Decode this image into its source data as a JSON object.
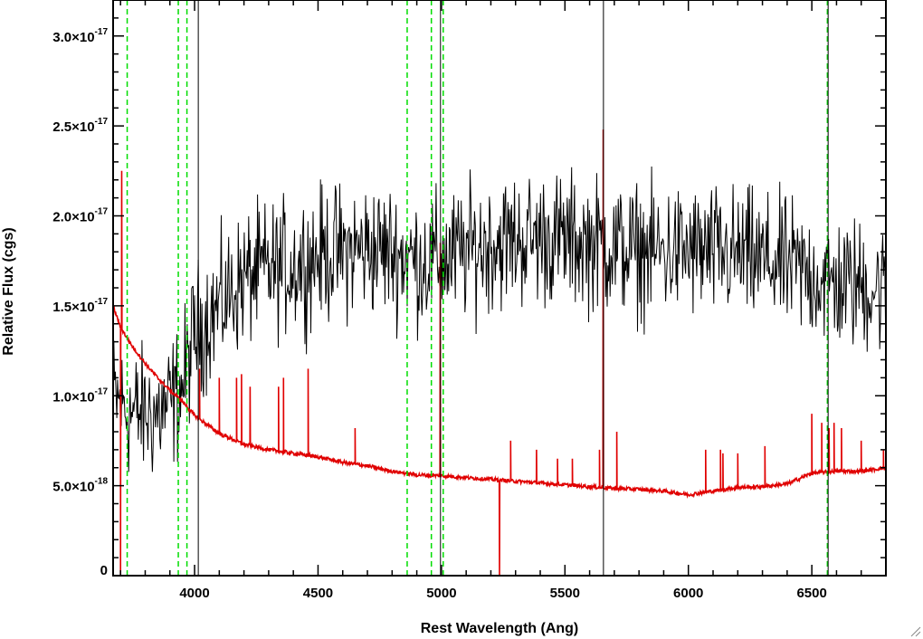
{
  "chart_data": {
    "type": "line",
    "title": "",
    "xlabel": "Rest Wavelength (Ang)",
    "ylabel": "Relative Flux (cgs)",
    "xlim": [
      3670,
      6800
    ],
    "ylim": [
      0,
      3.2e-17
    ],
    "x_ticks": [
      4000,
      4500,
      5000,
      5500,
      6000,
      6500
    ],
    "x_tick_labels": [
      "4000",
      "4500",
      "5000",
      "5500",
      "6000",
      "6500"
    ],
    "y_ticks": [
      0,
      5e-18,
      1e-17,
      1.5e-17,
      2e-17,
      2.5e-17,
      3e-17
    ],
    "y_tick_labels": [
      {
        "mantissa": "0",
        "exponent": ""
      },
      {
        "mantissa": "5.0×10",
        "exponent": "-18"
      },
      {
        "mantissa": "1.0×10",
        "exponent": "-17"
      },
      {
        "mantissa": "1.5×10",
        "exponent": "-17"
      },
      {
        "mantissa": "2.0×10",
        "exponent": "-17"
      },
      {
        "mantissa": "2.5×10",
        "exponent": "-17"
      },
      {
        "mantissa": "3.0×10",
        "exponent": "-17"
      }
    ],
    "grid": false,
    "series": [
      {
        "color": "#000000",
        "style": "noisy-spectrum",
        "x": [
          3670,
          3700,
          3750,
          3800,
          3850,
          3900,
          3950,
          4000,
          4100,
          4200,
          4300,
          4400,
          4500,
          4600,
          4700,
          4800,
          4900,
          5000,
          5200,
          5400,
          5600,
          5800,
          6000,
          6200,
          6400,
          6600,
          6800
        ],
        "y": [
          1e-17,
          9.5e-18,
          9e-18,
          9e-18,
          9e-18,
          9.5e-18,
          1.05e-17,
          1.35e-17,
          1.5e-17,
          1.65e-17,
          1.7e-17,
          1.72e-17,
          1.78e-17,
          1.8e-17,
          1.82e-17,
          1.8e-17,
          1.75e-17,
          1.75e-17,
          1.85e-17,
          1.88e-17,
          1.85e-17,
          1.8e-17,
          1.8e-17,
          1.78e-17,
          1.72e-17,
          1.62e-17,
          1.6e-17
        ],
        "noise_amplitude": 5.5e-18
      },
      {
        "color": "#e00000",
        "style": "model",
        "x": [
          3670,
          3700,
          3750,
          3800,
          3850,
          3900,
          3950,
          4000,
          4100,
          4200,
          4300,
          4400,
          4500,
          4600,
          4700,
          4800,
          4900,
          5000,
          5100,
          5200,
          5300,
          5400,
          5500,
          5600,
          5700,
          5800,
          5900,
          6000,
          6100,
          6200,
          6300,
          6400,
          6500,
          6600,
          6700,
          6800
        ],
        "y": [
          1.5e-17,
          1.38e-17,
          1.27e-17,
          1.18e-17,
          1.1e-17,
          1.03e-17,
          9.7e-18,
          8.9e-18,
          7.9e-18,
          7.3e-18,
          7e-18,
          6.8e-18,
          6.6e-18,
          6.3e-18,
          6.1e-18,
          5.8e-18,
          5.6e-18,
          5.55e-18,
          5.45e-18,
          5.35e-18,
          5.25e-18,
          5.15e-18,
          5.05e-18,
          4.95e-18,
          4.85e-18,
          4.8e-18,
          4.7e-18,
          4.5e-18,
          4.7e-18,
          4.9e-18,
          4.95e-18,
          5.1e-18,
          5.7e-18,
          5.8e-18,
          5.8e-18,
          6e-18
        ],
        "spikes": [
          {
            "x": 3705,
            "y": 2.25e-17
          },
          {
            "x": 4020,
            "y": 1.15e-17
          },
          {
            "x": 4100,
            "y": 1.1e-17
          },
          {
            "x": 4170,
            "y": 1.1e-17
          },
          {
            "x": 4190,
            "y": 1.12e-17
          },
          {
            "x": 4225,
            "y": 1.05e-17
          },
          {
            "x": 4340,
            "y": 1.05e-17
          },
          {
            "x": 4360,
            "y": 1.1e-17
          },
          {
            "x": 4460,
            "y": 1.15e-17
          },
          {
            "x": 4650,
            "y": 8.2e-18
          },
          {
            "x": 4995,
            "y": 1.85e-17
          },
          {
            "x": 5280,
            "y": 7.5e-18
          },
          {
            "x": 5385,
            "y": 7e-18
          },
          {
            "x": 5470,
            "y": 6.5e-18
          },
          {
            "x": 5530,
            "y": 6.5e-18
          },
          {
            "x": 5640,
            "y": 7e-18
          },
          {
            "x": 5655,
            "y": 2.48e-17
          },
          {
            "x": 5710,
            "y": 8e-18
          },
          {
            "x": 6070,
            "y": 7e-18
          },
          {
            "x": 6130,
            "y": 7e-18
          },
          {
            "x": 6140,
            "y": 6.8e-18
          },
          {
            "x": 6200,
            "y": 6.8e-18
          },
          {
            "x": 6310,
            "y": 7.2e-18
          },
          {
            "x": 6500,
            "y": 9e-18
          },
          {
            "x": 6540,
            "y": 8.5e-18
          },
          {
            "x": 6570,
            "y": 8.2e-18
          },
          {
            "x": 6590,
            "y": 8.5e-18
          },
          {
            "x": 6620,
            "y": 8.2e-18
          },
          {
            "x": 6700,
            "y": 7.5e-18
          },
          {
            "x": 6790,
            "y": 7e-18
          }
        ],
        "dips": [
          {
            "x": 3700,
            "y": 0
          },
          {
            "x": 5235,
            "y": 0
          }
        ]
      }
    ],
    "vertical_lines": [
      {
        "x": 3727,
        "color": "#00dd00",
        "style": "dashed"
      },
      {
        "x": 3934,
        "color": "#00dd00",
        "style": "dashed"
      },
      {
        "x": 3969,
        "color": "#00dd00",
        "style": "dashed"
      },
      {
        "x": 4861,
        "color": "#00dd00",
        "style": "dashed"
      },
      {
        "x": 4959,
        "color": "#00dd00",
        "style": "dashed"
      },
      {
        "x": 5007,
        "color": "#00dd00",
        "style": "dashed"
      },
      {
        "x": 6563,
        "color": "#00dd00",
        "style": "dashed"
      },
      {
        "x": 4015,
        "color": "#000000",
        "style": "solid"
      },
      {
        "x": 4996,
        "color": "#000000",
        "style": "solid"
      },
      {
        "x": 5656,
        "color": "#000000",
        "style": "solid"
      },
      {
        "x": 6566,
        "color": "#000000",
        "style": "solid"
      }
    ]
  }
}
